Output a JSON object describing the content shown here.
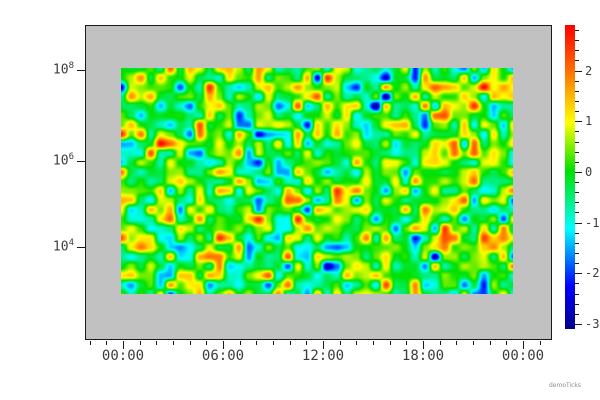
{
  "annotation": "demoTicks",
  "chart_data": {
    "type": "heatmap",
    "title": "",
    "x_axis": {
      "label": "",
      "scale": "time",
      "major_tick_labels": [
        "00:00",
        "06:00",
        "12:00",
        "18:00",
        "00:00"
      ],
      "major_tick_hours": [
        0,
        6,
        12,
        18,
        24
      ],
      "minor_tick_interval_hours": 1,
      "minor_hour_range": [
        -2,
        25
      ]
    },
    "y_axis": {
      "label": "",
      "scale": "log",
      "tick_labels": [
        {
          "base": "10",
          "exp": "8"
        },
        {
          "base": "10",
          "exp": "6"
        },
        {
          "base": "10",
          "exp": "4"
        }
      ]
    },
    "colorbar": {
      "vmin": -3.1,
      "vmax": 2.9,
      "major_tick_values": [
        2,
        1,
        0,
        -1,
        -2,
        -3
      ],
      "major_tick_labels": [
        "2",
        "1",
        "0",
        "-1",
        "-2",
        "-3"
      ],
      "minor_tick_step": 0.2,
      "position": "right"
    },
    "colormap": {
      "name": "jet-rainbow",
      "stops": [
        [
          0.0,
          [
            0,
            0,
            140
          ]
        ],
        [
          0.14,
          [
            0,
            0,
            255
          ]
        ],
        [
          0.33,
          [
            0,
            255,
            255
          ]
        ],
        [
          0.52,
          [
            0,
            225,
            0
          ]
        ],
        [
          0.68,
          [
            255,
            255,
            0
          ]
        ],
        [
          0.85,
          [
            255,
            112,
            0
          ]
        ],
        [
          1.0,
          [
            255,
            0,
            0
          ]
        ]
      ]
    },
    "field": {
      "kind": "random-smooth-noise",
      "grid_cols": 40,
      "grid_rows": 24,
      "seed": 987654321,
      "mean": 0.1,
      "std": 1.05,
      "value_range": [
        -3.1,
        2.9
      ]
    },
    "plot_bg_color": "#c1c1c1",
    "frame_color": "#1a1a1a",
    "page_bg_color": "#ffffff",
    "grid": false,
    "legend": "colorbar-right"
  }
}
